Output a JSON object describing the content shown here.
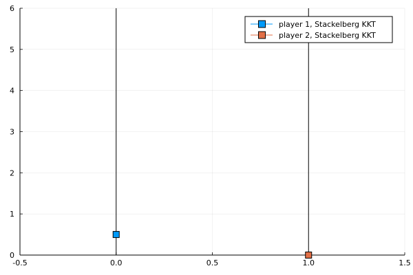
{
  "chart_data": {
    "type": "scatter",
    "xlim": [
      -0.5,
      1.5
    ],
    "ylim": [
      0,
      6
    ],
    "x_ticks": [
      -0.5,
      0.0,
      0.5,
      1.0,
      1.5
    ],
    "x_tick_labels": [
      "-0.5",
      "0.0",
      "0.5",
      "1.0",
      "1.5"
    ],
    "y_ticks": [
      0,
      1,
      2,
      3,
      4,
      5,
      6
    ],
    "y_tick_labels": [
      "0",
      "1",
      "2",
      "3",
      "4",
      "5",
      "6"
    ],
    "grid": true,
    "legend_position": "top-right",
    "vertical_lines": [
      0.0,
      1.0
    ],
    "series": [
      {
        "name": "player 1, Stackelberg KKT",
        "color": "#009af9",
        "marker": "square",
        "points": [
          {
            "x": 0.0,
            "y": 0.5
          }
        ]
      },
      {
        "name": "player 2, Stackelberg KKT",
        "color": "#e26f46",
        "marker": "square",
        "points": [
          {
            "x": 1.0,
            "y": 0.0
          }
        ]
      }
    ]
  }
}
